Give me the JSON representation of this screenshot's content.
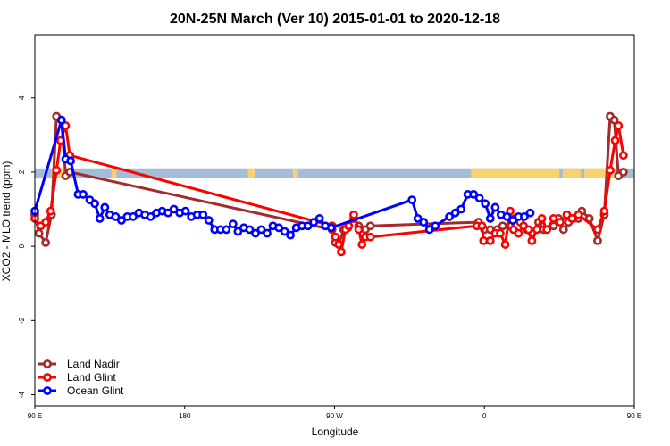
{
  "chart_data": {
    "type": "line",
    "title": "20N-25N March (Ver 10)   2015-01-01 to 2020-12-18",
    "xlabel": "Longitude",
    "ylabel": "XCO2 - MLO trend (ppm)",
    "xlim": [
      90,
      450
    ],
    "ylim": [
      -4.3,
      5.7
    ],
    "x_ticks": [
      {
        "value": 90,
        "label": "90 E"
      },
      {
        "value": 180,
        "label": "180"
      },
      {
        "value": 270,
        "label": "90 W"
      },
      {
        "value": 360,
        "label": "0"
      },
      {
        "value": 450,
        "label": "90 E"
      },
      {
        "value": 540,
        "label": "180"
      }
    ],
    "y_ticks": [
      {
        "value": -4,
        "label": "-4"
      },
      {
        "value": -2,
        "label": "-2"
      },
      {
        "value": 0,
        "label": "0"
      },
      {
        "value": 2,
        "label": "2"
      },
      {
        "value": 4,
        "label": "4"
      }
    ],
    "map_strip": {
      "y_range": [
        1.85,
        2.1
      ],
      "ocean_color": "#a4bcd8",
      "land_color": "#f8d26f"
    },
    "grid": false,
    "legend": "bottom-left",
    "series": [
      {
        "name": "Land Nadir",
        "color": "#a52a2a",
        "points": [
          [
            90.0,
            0.85
          ],
          [
            92.5,
            0.35
          ],
          [
            96.5,
            0.1
          ],
          [
            100.0,
            0.85
          ],
          [
            103.0,
            3.5
          ],
          [
            106.0,
            3.4
          ],
          [
            108.5,
            1.9
          ],
          [
            111.0,
            2.0
          ],
          [
            268.5,
            0.45
          ],
          [
            270.5,
            0.1
          ],
          [
            272.5,
            0.05
          ],
          [
            275.5,
            0.45
          ],
          [
            278.0,
            0.5
          ],
          [
            281.5,
            0.75
          ],
          [
            284.5,
            0.55
          ],
          [
            288.5,
            0.45
          ],
          [
            291.5,
            0.55
          ],
          [
            356.5,
            0.65
          ],
          [
            360.0,
            0.45
          ],
          [
            363.5,
            0.45
          ],
          [
            367.5,
            0.45
          ],
          [
            371.0,
            0.55
          ],
          [
            375.5,
            0.55
          ],
          [
            378.5,
            0.75
          ],
          [
            381.5,
            0.65
          ],
          [
            385.5,
            0.45
          ],
          [
            388.5,
            0.35
          ],
          [
            392.5,
            0.65
          ],
          [
            395.5,
            0.45
          ],
          [
            401.5,
            0.55
          ],
          [
            404.5,
            0.75
          ],
          [
            407.5,
            0.45
          ],
          [
            410.5,
            0.65
          ],
          [
            413.5,
            0.75
          ],
          [
            416.5,
            0.75
          ],
          [
            418.5,
            0.95
          ],
          [
            423.0,
            0.75
          ],
          [
            428.0,
            0.15
          ],
          [
            432.0,
            0.85
          ],
          [
            435.5,
            3.5
          ],
          [
            438.0,
            3.4
          ],
          [
            440.5,
            1.9
          ],
          [
            443.5,
            2.0
          ]
        ]
      },
      {
        "name": "Land Glint",
        "color": "#ff0000",
        "points": [
          [
            90.0,
            0.75
          ],
          [
            93.5,
            0.55
          ],
          [
            96.5,
            0.65
          ],
          [
            99.5,
            0.95
          ],
          [
            103.0,
            2.05
          ],
          [
            105.5,
            2.85
          ],
          [
            108.5,
            3.25
          ],
          [
            111.0,
            2.45
          ],
          [
            268.5,
            0.55
          ],
          [
            270.5,
            0.25
          ],
          [
            272.5,
            0.05
          ],
          [
            274.0,
            -0.15
          ],
          [
            276.5,
            0.45
          ],
          [
            278.5,
            0.55
          ],
          [
            281.5,
            0.85
          ],
          [
            284.5,
            0.45
          ],
          [
            286.5,
            0.05
          ],
          [
            288.5,
            0.25
          ],
          [
            291.5,
            0.25
          ],
          [
            355.5,
            0.55
          ],
          [
            358.5,
            0.55
          ],
          [
            359.5,
            0.15
          ],
          [
            363.5,
            0.15
          ],
          [
            366.5,
            0.35
          ],
          [
            369.5,
            0.35
          ],
          [
            372.5,
            0.05
          ],
          [
            375.5,
            0.95
          ],
          [
            377.5,
            0.45
          ],
          [
            380.5,
            0.35
          ],
          [
            383.5,
            0.55
          ],
          [
            386.5,
            0.45
          ],
          [
            388.5,
            0.15
          ],
          [
            391.5,
            0.45
          ],
          [
            394.5,
            0.75
          ],
          [
            397.5,
            0.45
          ],
          [
            401.5,
            0.75
          ],
          [
            405.5,
            0.65
          ],
          [
            409.5,
            0.85
          ],
          [
            412.5,
            0.75
          ],
          [
            416.5,
            0.85
          ],
          [
            428.0,
            0.45
          ],
          [
            432.0,
            0.95
          ],
          [
            435.5,
            2.05
          ],
          [
            438.5,
            2.85
          ],
          [
            440.5,
            3.25
          ],
          [
            443.5,
            2.45
          ]
        ]
      },
      {
        "name": "Ocean Glint",
        "color": "#0000ff",
        "points": [
          [
            90.0,
            0.95
          ],
          [
            106.0,
            3.4
          ],
          [
            108.5,
            2.35
          ],
          [
            111.5,
            2.3
          ],
          [
            116.0,
            1.4
          ],
          [
            119.0,
            1.4
          ],
          [
            123.0,
            1.25
          ],
          [
            126.0,
            1.15
          ],
          [
            129.0,
            0.75
          ],
          [
            132.0,
            1.05
          ],
          [
            135.0,
            0.85
          ],
          [
            138.5,
            0.8
          ],
          [
            142.0,
            0.7
          ],
          [
            145.5,
            0.8
          ],
          [
            149.0,
            0.8
          ],
          [
            152.5,
            0.9
          ],
          [
            156.0,
            0.85
          ],
          [
            159.5,
            0.8
          ],
          [
            163.0,
            0.9
          ],
          [
            166.5,
            0.95
          ],
          [
            170.0,
            0.9
          ],
          [
            173.5,
            1.0
          ],
          [
            177.0,
            0.9
          ],
          [
            180.5,
            0.95
          ],
          [
            184.0,
            0.8
          ],
          [
            187.5,
            0.85
          ],
          [
            191.0,
            0.85
          ],
          [
            194.5,
            0.7
          ],
          [
            198.0,
            0.45
          ],
          [
            201.5,
            0.45
          ],
          [
            205.0,
            0.45
          ],
          [
            209.0,
            0.6
          ],
          [
            212.0,
            0.4
          ],
          [
            215.5,
            0.5
          ],
          [
            219.0,
            0.45
          ],
          [
            222.5,
            0.35
          ],
          [
            226.0,
            0.45
          ],
          [
            229.5,
            0.35
          ],
          [
            233.0,
            0.55
          ],
          [
            236.5,
            0.5
          ],
          [
            240.0,
            0.4
          ],
          [
            243.5,
            0.3
          ],
          [
            247.0,
            0.5
          ],
          [
            250.5,
            0.55
          ],
          [
            254.0,
            0.55
          ],
          [
            257.5,
            0.65
          ],
          [
            261.0,
            0.75
          ],
          [
            264.5,
            0.55
          ],
          [
            268.0,
            0.5
          ],
          [
            316.5,
            1.25
          ],
          [
            320.0,
            0.75
          ],
          [
            323.5,
            0.65
          ],
          [
            327.0,
            0.45
          ],
          [
            330.5,
            0.55
          ],
          [
            339.0,
            0.8
          ],
          [
            342.5,
            0.9
          ],
          [
            346.0,
            1.0
          ],
          [
            350.0,
            1.4
          ],
          [
            353.5,
            1.4
          ],
          [
            357.0,
            1.3
          ],
          [
            360.5,
            1.15
          ],
          [
            363.5,
            0.75
          ],
          [
            366.5,
            1.05
          ],
          [
            370.0,
            0.85
          ],
          [
            373.5,
            0.8
          ],
          [
            377.0,
            0.7
          ],
          [
            380.5,
            0.8
          ],
          [
            384.0,
            0.8
          ],
          [
            387.5,
            0.9
          ]
        ]
      }
    ]
  }
}
